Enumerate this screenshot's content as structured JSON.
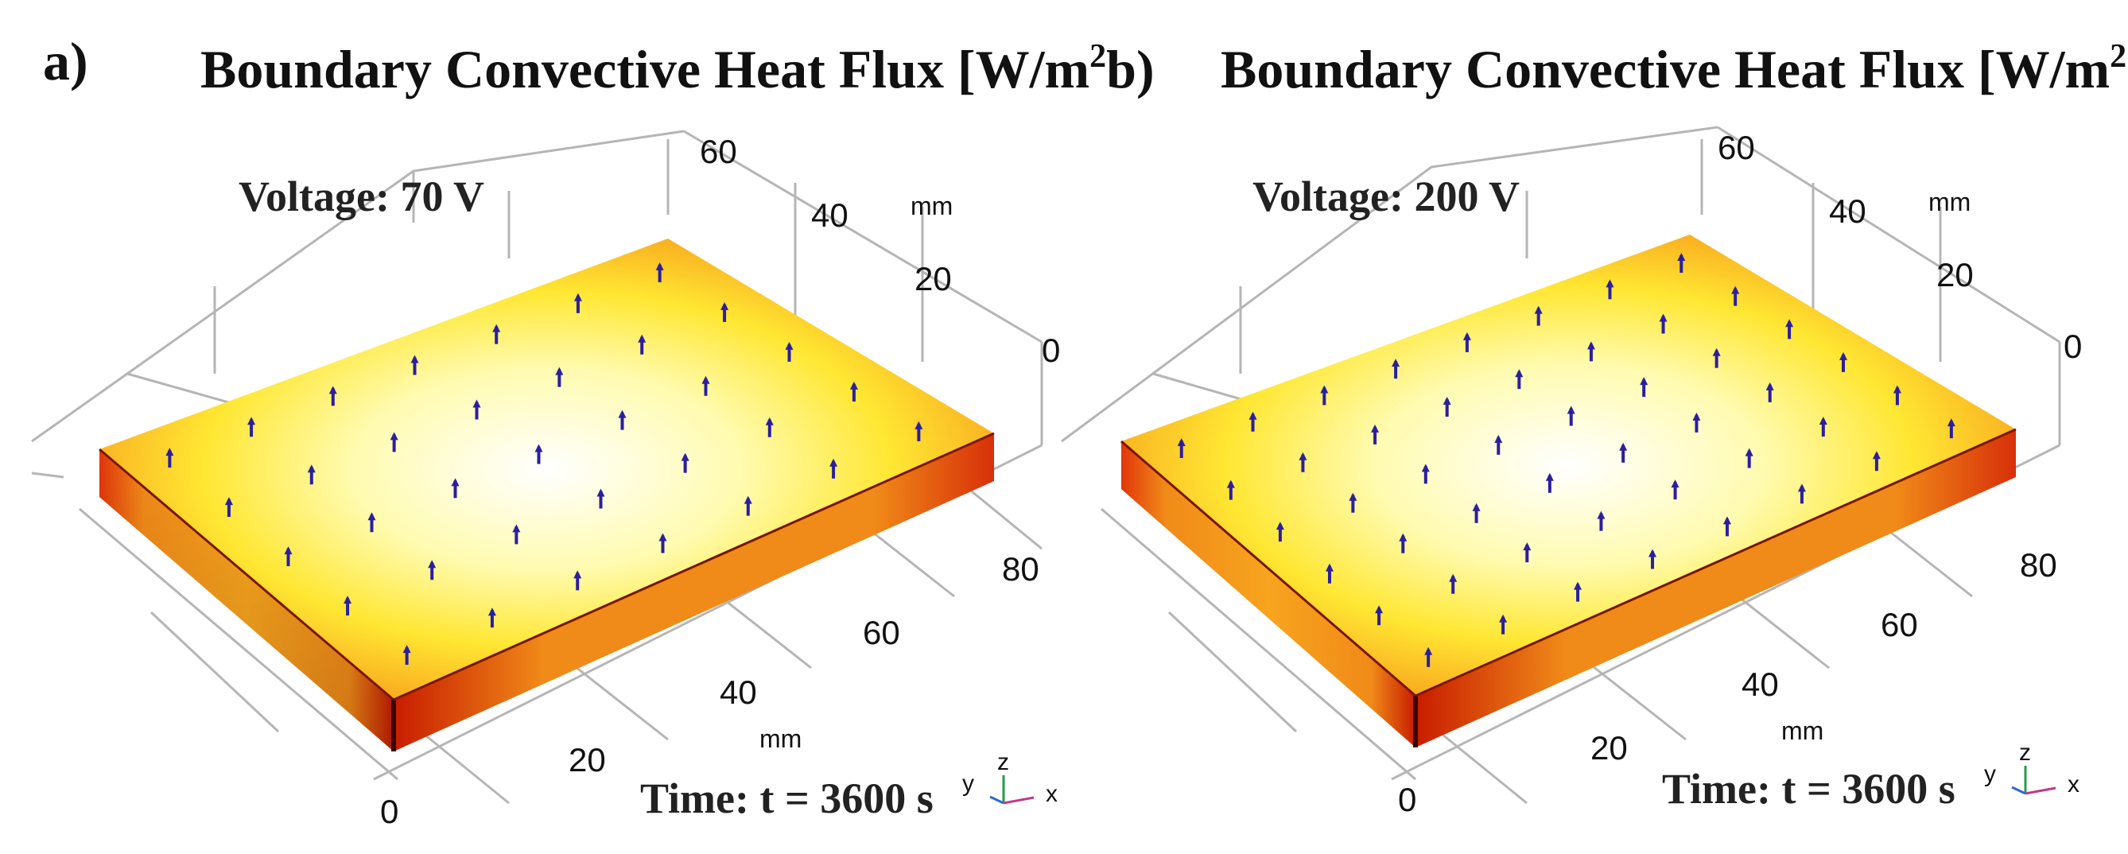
{
  "panel_a_label": "a)",
  "panel_b_label": "b)",
  "panels": [
    {
      "title_main": "Boundary Convective Heat Flux [W/m",
      "title_sup": "2",
      "title_end": "]",
      "voltage": "Voltage: 70 V",
      "time": "Time: t = 3600 s",
      "unit_label": "mm",
      "unit_label_2": "mm",
      "y_ticks": [
        "60",
        "40",
        "20",
        "0"
      ],
      "x_ticks": [
        "80",
        "60",
        "40",
        "20",
        "0"
      ],
      "triad": {
        "y": "y",
        "z": "z",
        "x": "x"
      }
    },
    {
      "title_main": "Boundary Convective Heat Flux [W/m",
      "title_sup": "2",
      "title_end": "]",
      "voltage": "Voltage: 200 V",
      "time": "Time: t = 3600 s",
      "unit_label": "mm",
      "unit_label_2": "mm",
      "y_ticks": [
        "60",
        "40",
        "20",
        "0"
      ],
      "x_ticks": [
        "80",
        "60",
        "40",
        "20",
        "0"
      ],
      "triad": {
        "y": "y",
        "z": "z",
        "x": "x"
      }
    }
  ],
  "colors": {
    "hot_center": "#ffffff",
    "mid": "#ffee44",
    "edge": "#f59a1a",
    "rim": "#cc1a00",
    "arrows": "#2b1f9e"
  }
}
